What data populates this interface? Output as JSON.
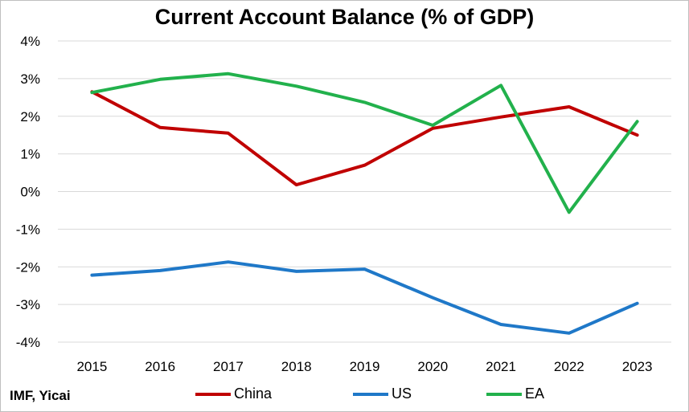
{
  "chart_data": {
    "type": "line",
    "title": "Current Account Balance (% of GDP)",
    "x": [
      "2015",
      "2016",
      "2017",
      "2018",
      "2019",
      "2020",
      "2021",
      "2022",
      "2023"
    ],
    "ylim": [
      -4,
      4
    ],
    "yticks": [
      4,
      3,
      2,
      1,
      0,
      -1,
      -2,
      -3,
      -4
    ],
    "ytick_labels": [
      "4%",
      "3%",
      "2%",
      "1%",
      "0%",
      "-1%",
      "-2%",
      "-3%",
      "-4%"
    ],
    "grid": true,
    "legend_position": "bottom",
    "series": [
      {
        "name": "China",
        "color": "#c00000",
        "values": [
          2.65,
          1.7,
          1.55,
          0.18,
          0.7,
          1.68,
          1.98,
          2.25,
          1.5
        ]
      },
      {
        "name": "US",
        "color": "#1f78c8",
        "values": [
          -2.22,
          -2.1,
          -1.87,
          -2.12,
          -2.06,
          -2.82,
          -3.53,
          -3.76,
          -2.97
        ]
      },
      {
        "name": "EA",
        "color": "#22b14c",
        "values": [
          2.63,
          2.98,
          3.13,
          2.8,
          2.37,
          1.76,
          2.82,
          -0.55,
          1.86
        ]
      }
    ]
  },
  "source": "IMF, Yicai"
}
